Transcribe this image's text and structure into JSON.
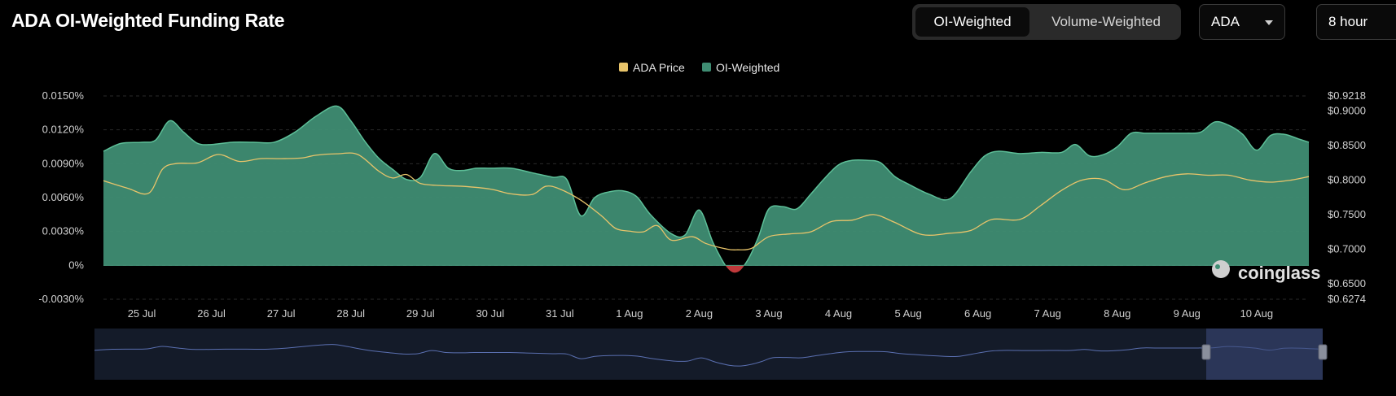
{
  "header": {
    "title": "ADA OI-Weighted Funding Rate",
    "toggle": {
      "active": "OI-Weighted",
      "inactive": "Volume-Weighted"
    },
    "asset_select": "ADA",
    "interval_select": "8 hour"
  },
  "watermark": "coinglass",
  "colors": {
    "price": "#e8c46a",
    "oi_fill": "#3f8d73",
    "oi_line": "#5dbf98",
    "negative": "#c0393b"
  },
  "chart_data": {
    "type": "area",
    "legend": [
      "ADA Price",
      "OI-Weighted"
    ],
    "legend_position": "top-center",
    "x_tick_labels": [
      "25 Jul",
      "26 Jul",
      "27 Jul",
      "28 Jul",
      "29 Jul",
      "30 Jul",
      "31 Jul",
      "1 Aug",
      "2 Aug",
      "3 Aug",
      "4 Aug",
      "5 Aug",
      "6 Aug",
      "7 Aug",
      "8 Aug",
      "9 Aug",
      "10 Aug"
    ],
    "x_range_days": [
      -0.55,
      16.75
    ],
    "y_left": {
      "ticks": [
        "0.0150%",
        "0.0120%",
        "0.0090%",
        "0.0060%",
        "0.0030%",
        "0%",
        "-0.0030%"
      ],
      "range": [
        -0.003,
        0.015
      ],
      "unit": "%"
    },
    "y_right": {
      "ticks": [
        "$0.9218",
        "$0.9000",
        "$0.8500",
        "$0.8000",
        "$0.7500",
        "$0.7000",
        "$0.6500",
        "$0.6274"
      ],
      "range": [
        0.6274,
        0.9218
      ],
      "unit": "USD"
    },
    "grid": "horizontal dashed",
    "series": [
      {
        "name": "OI-Weighted",
        "axis": "left",
        "x": [
          -0.55,
          -0.3,
          0,
          0.2,
          0.4,
          0.6,
          0.8,
          1,
          1.3,
          1.6,
          1.9,
          2.2,
          2.5,
          2.8,
          3,
          3.2,
          3.4,
          3.6,
          3.8,
          4,
          4.2,
          4.4,
          4.6,
          4.8,
          5,
          5.3,
          5.6,
          5.9,
          6.1,
          6.3,
          6.5,
          6.7,
          6.9,
          7.1,
          7.3,
          7.6,
          7.8,
          8,
          8.2,
          8.4,
          8.55,
          8.7,
          8.85,
          9,
          9.2,
          9.4,
          9.6,
          9.8,
          10,
          10.2,
          10.4,
          10.6,
          10.8,
          11,
          11.3,
          11.6,
          11.9,
          12.1,
          12.3,
          12.6,
          12.9,
          13.2,
          13.4,
          13.6,
          13.8,
          14,
          14.2,
          14.4,
          14.6,
          14.8,
          15,
          15.2,
          15.4,
          15.6,
          15.8,
          16,
          16.2,
          16.4,
          16.6,
          16.75
        ],
        "y": [
          0.0101,
          0.0108,
          0.0109,
          0.0111,
          0.0128,
          0.0118,
          0.0108,
          0.0107,
          0.0109,
          0.0109,
          0.0109,
          0.0118,
          0.0132,
          0.0141,
          0.0128,
          0.011,
          0.0095,
          0.0085,
          0.0076,
          0.0078,
          0.0099,
          0.0086,
          0.0084,
          0.0086,
          0.0086,
          0.0086,
          0.0082,
          0.0078,
          0.0076,
          0.0044,
          0.006,
          0.0065,
          0.0066,
          0.0061,
          0.0045,
          0.0028,
          0.0027,
          0.0049,
          0.002,
          -0.0002,
          -0.0006,
          0.0005,
          0.0025,
          0.005,
          0.0052,
          0.005,
          0.0063,
          0.0077,
          0.0089,
          0.0093,
          0.0093,
          0.0091,
          0.0079,
          0.0072,
          0.0063,
          0.0059,
          0.0083,
          0.0097,
          0.0101,
          0.0099,
          0.01,
          0.01,
          0.0107,
          0.0097,
          0.0098,
          0.0105,
          0.0117,
          0.0117,
          0.0117,
          0.0117,
          0.0117,
          0.0118,
          0.0127,
          0.0124,
          0.0116,
          0.0102,
          0.0115,
          0.0116,
          0.0112,
          0.0109
        ]
      },
      {
        "name": "ADA Price",
        "axis": "right",
        "x": [
          -0.55,
          -0.2,
          0.1,
          0.3,
          0.5,
          0.8,
          1.1,
          1.4,
          1.7,
          2.0,
          2.3,
          2.5,
          2.8,
          3.1,
          3.4,
          3.6,
          3.8,
          4.0,
          4.3,
          4.6,
          5.0,
          5.3,
          5.6,
          5.8,
          6.0,
          6.3,
          6.6,
          6.8,
          7.0,
          7.2,
          7.4,
          7.6,
          7.9,
          8.1,
          8.4,
          8.55,
          8.75,
          9.0,
          9.3,
          9.6,
          9.9,
          10.2,
          10.5,
          10.8,
          11.2,
          11.6,
          11.9,
          12.2,
          12.6,
          12.9,
          13.2,
          13.5,
          13.8,
          14.1,
          14.4,
          14.7,
          15.0,
          15.3,
          15.6,
          15.9,
          16.2,
          16.5,
          16.75
        ],
        "y": [
          0.799,
          0.788,
          0.781,
          0.816,
          0.824,
          0.825,
          0.837,
          0.827,
          0.831,
          0.831,
          0.832,
          0.836,
          0.838,
          0.837,
          0.813,
          0.803,
          0.808,
          0.795,
          0.792,
          0.791,
          0.787,
          0.78,
          0.779,
          0.791,
          0.787,
          0.771,
          0.748,
          0.73,
          0.726,
          0.725,
          0.734,
          0.713,
          0.718,
          0.708,
          0.7,
          0.699,
          0.701,
          0.718,
          0.722,
          0.725,
          0.74,
          0.742,
          0.75,
          0.739,
          0.721,
          0.723,
          0.727,
          0.743,
          0.743,
          0.763,
          0.785,
          0.8,
          0.801,
          0.786,
          0.796,
          0.805,
          0.809,
          0.807,
          0.807,
          0.8,
          0.797,
          0.8,
          0.805
        ]
      }
    ]
  }
}
